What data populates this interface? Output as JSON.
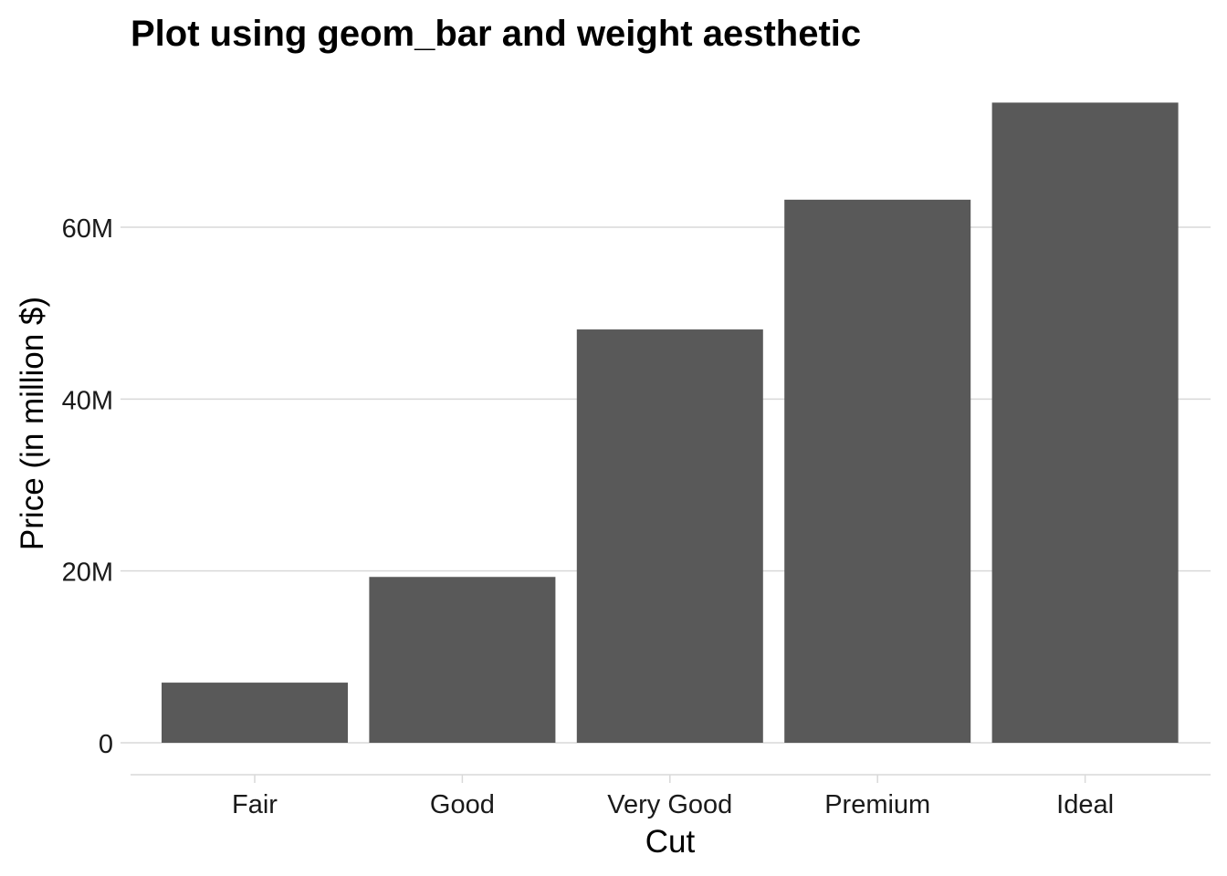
{
  "chart_data": {
    "type": "bar",
    "title": "Plot using geom_bar and weight aesthetic",
    "xlabel": "Cut",
    "ylabel": "Price (in million $)",
    "categories": [
      "Fair",
      "Good",
      "Very Good",
      "Premium",
      "Ideal"
    ],
    "values": [
      7.0,
      19.3,
      48.1,
      63.2,
      74.5
    ],
    "value_unit": "million $",
    "ylim": [
      0,
      78
    ],
    "yticks": [
      0,
      20,
      40,
      60
    ],
    "ytick_labels": [
      "0",
      "20M",
      "40M",
      "60M"
    ],
    "grid": "horizontal major",
    "legend": "none",
    "bar_color": "#595959",
    "grid_color": "#d9d9d9"
  }
}
